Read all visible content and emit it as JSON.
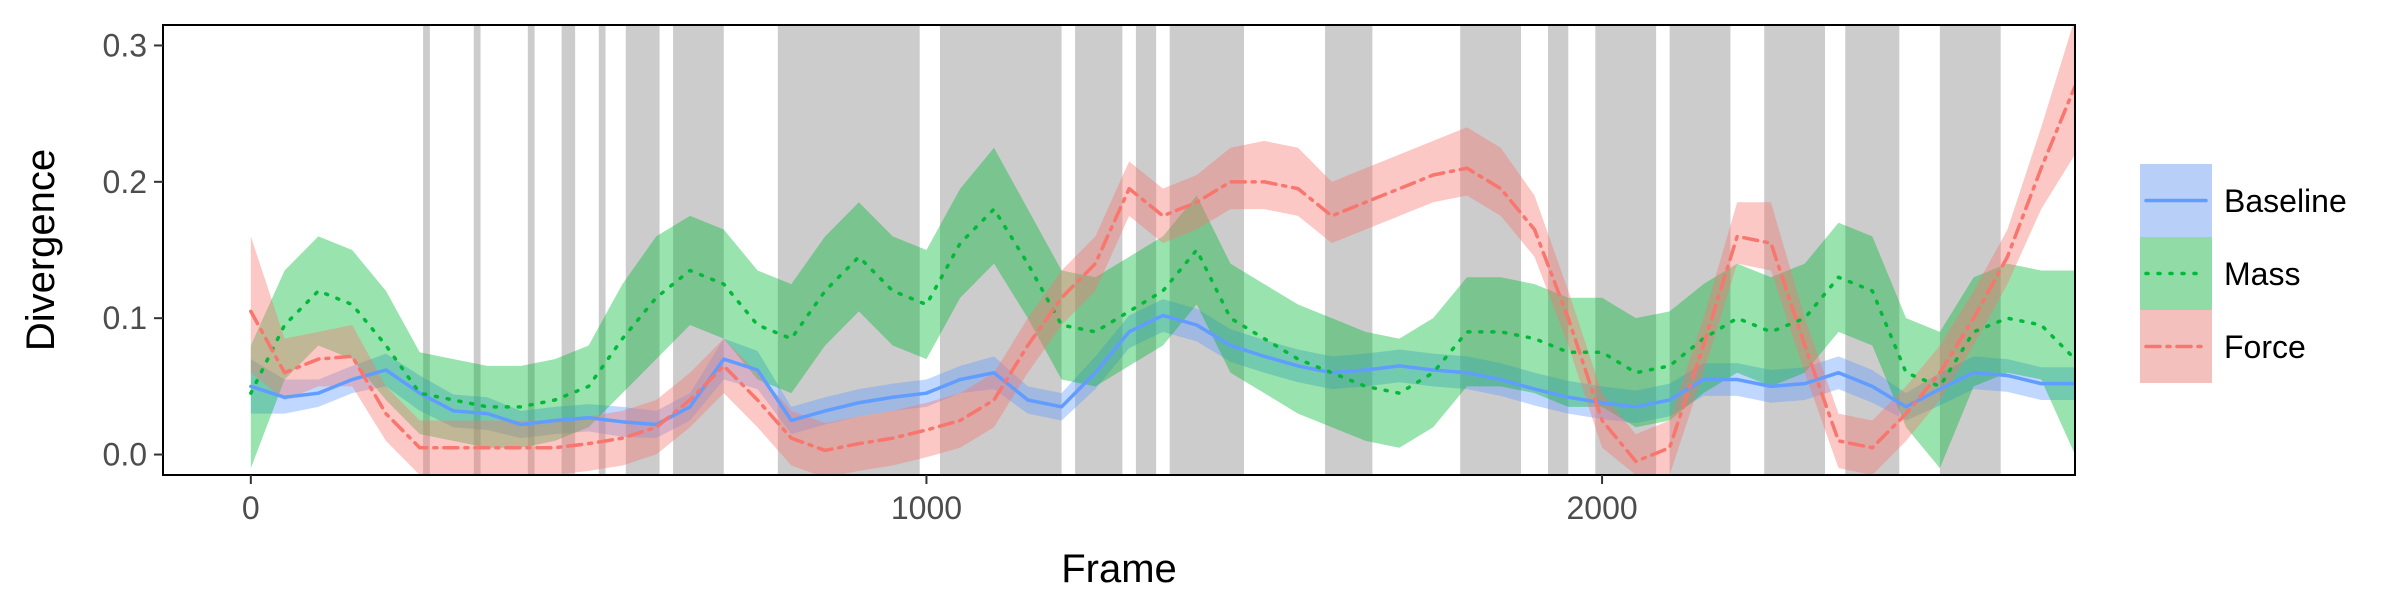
{
  "chart_data": {
    "type": "line",
    "title": "",
    "xlabel": "Frame",
    "ylabel": "Divergence",
    "xlim": [
      -130,
      2700
    ],
    "ylim": [
      -0.015,
      0.315
    ],
    "xticks": [
      0,
      1000,
      2000
    ],
    "xtick_labels": [
      "0",
      "1000",
      "2000"
    ],
    "yticks": [
      0.0,
      0.1,
      0.2,
      0.3
    ],
    "ytick_labels": [
      "0.0",
      "0.1",
      "0.2",
      "0.3"
    ],
    "grid": false,
    "legend_position": "right",
    "shaded_intervals": [
      [
        255,
        265
      ],
      [
        330,
        340
      ],
      [
        410,
        420
      ],
      [
        460,
        480
      ],
      [
        515,
        525
      ],
      [
        555,
        605
      ],
      [
        625,
        700
      ],
      [
        780,
        990
      ],
      [
        1020,
        1200
      ],
      [
        1220,
        1290
      ],
      [
        1310,
        1340
      ],
      [
        1360,
        1470
      ],
      [
        1590,
        1660
      ],
      [
        1790,
        1880
      ],
      [
        1920,
        1950
      ],
      [
        1990,
        2080
      ],
      [
        2100,
        2190
      ],
      [
        2240,
        2330
      ],
      [
        2360,
        2440
      ],
      [
        2500,
        2590
      ]
    ],
    "series": [
      {
        "name": "Baseline",
        "color": "#619CFF",
        "linestyle": "solid",
        "x": [
          0,
          50,
          100,
          150,
          200,
          250,
          300,
          350,
          400,
          450,
          500,
          550,
          600,
          650,
          700,
          750,
          800,
          850,
          900,
          950,
          1000,
          1050,
          1100,
          1150,
          1200,
          1250,
          1300,
          1350,
          1400,
          1450,
          1500,
          1550,
          1600,
          1650,
          1700,
          1750,
          1800,
          1850,
          1900,
          1950,
          2000,
          2050,
          2100,
          2150,
          2200,
          2250,
          2300,
          2350,
          2400,
          2450,
          2500,
          2550,
          2600,
          2650,
          2700
        ],
        "y": [
          0.05,
          0.042,
          0.045,
          0.055,
          0.062,
          0.045,
          0.032,
          0.03,
          0.022,
          0.025,
          0.027,
          0.024,
          0.022,
          0.035,
          0.07,
          0.062,
          0.025,
          0.032,
          0.038,
          0.042,
          0.045,
          0.055,
          0.06,
          0.04,
          0.035,
          0.06,
          0.09,
          0.102,
          0.095,
          0.08,
          0.072,
          0.065,
          0.06,
          0.062,
          0.065,
          0.062,
          0.06,
          0.055,
          0.048,
          0.042,
          0.038,
          0.035,
          0.04,
          0.055,
          0.055,
          0.05,
          0.052,
          0.06,
          0.05,
          0.035,
          0.048,
          0.06,
          0.058,
          0.052,
          0.052
        ],
        "lower": [
          0.03,
          0.03,
          0.035,
          0.045,
          0.05,
          0.032,
          0.02,
          0.018,
          0.012,
          0.015,
          0.017,
          0.013,
          0.012,
          0.025,
          0.055,
          0.048,
          0.015,
          0.022,
          0.028,
          0.032,
          0.035,
          0.045,
          0.048,
          0.03,
          0.025,
          0.048,
          0.078,
          0.09,
          0.083,
          0.068,
          0.06,
          0.053,
          0.048,
          0.05,
          0.053,
          0.05,
          0.048,
          0.043,
          0.036,
          0.03,
          0.026,
          0.023,
          0.028,
          0.043,
          0.043,
          0.038,
          0.04,
          0.048,
          0.038,
          0.025,
          0.036,
          0.048,
          0.046,
          0.04,
          0.04
        ],
        "upper": [
          0.07,
          0.055,
          0.055,
          0.065,
          0.074,
          0.058,
          0.044,
          0.042,
          0.032,
          0.035,
          0.037,
          0.035,
          0.032,
          0.045,
          0.085,
          0.076,
          0.035,
          0.042,
          0.048,
          0.052,
          0.055,
          0.065,
          0.072,
          0.05,
          0.045,
          0.072,
          0.102,
          0.114,
          0.107,
          0.092,
          0.084,
          0.077,
          0.072,
          0.074,
          0.077,
          0.074,
          0.072,
          0.067,
          0.06,
          0.054,
          0.05,
          0.047,
          0.052,
          0.067,
          0.067,
          0.062,
          0.064,
          0.072,
          0.062,
          0.045,
          0.06,
          0.072,
          0.07,
          0.064,
          0.064
        ]
      },
      {
        "name": "Mass",
        "color": "#00BA38",
        "linestyle": "dotted",
        "x": [
          0,
          50,
          100,
          150,
          200,
          250,
          300,
          350,
          400,
          450,
          500,
          550,
          600,
          650,
          700,
          750,
          800,
          850,
          900,
          950,
          1000,
          1050,
          1100,
          1150,
          1200,
          1250,
          1300,
          1350,
          1400,
          1450,
          1500,
          1550,
          1600,
          1650,
          1700,
          1750,
          1800,
          1850,
          1900,
          1950,
          2000,
          2050,
          2100,
          2150,
          2200,
          2250,
          2300,
          2350,
          2400,
          2450,
          2500,
          2550,
          2600,
          2650,
          2700
        ],
        "y": [
          0.045,
          0.095,
          0.12,
          0.11,
          0.08,
          0.045,
          0.04,
          0.035,
          0.035,
          0.04,
          0.05,
          0.085,
          0.115,
          0.135,
          0.125,
          0.095,
          0.085,
          0.12,
          0.145,
          0.12,
          0.11,
          0.155,
          0.18,
          0.14,
          0.095,
          0.09,
          0.105,
          0.12,
          0.15,
          0.1,
          0.085,
          0.07,
          0.06,
          0.05,
          0.045,
          0.06,
          0.09,
          0.09,
          0.085,
          0.075,
          0.075,
          0.06,
          0.065,
          0.085,
          0.1,
          0.09,
          0.1,
          0.13,
          0.12,
          0.06,
          0.05,
          0.09,
          0.1,
          0.095,
          0.07
        ],
        "lower": [
          -0.01,
          0.055,
          0.08,
          0.07,
          0.04,
          0.015,
          0.01,
          0.005,
          0.005,
          0.01,
          0.02,
          0.045,
          0.07,
          0.095,
          0.085,
          0.055,
          0.045,
          0.08,
          0.105,
          0.08,
          0.07,
          0.115,
          0.14,
          0.1,
          0.055,
          0.05,
          0.065,
          0.08,
          0.11,
          0.06,
          0.045,
          0.03,
          0.02,
          0.01,
          0.005,
          0.02,
          0.05,
          0.05,
          0.045,
          0.035,
          0.035,
          0.02,
          0.025,
          0.045,
          0.06,
          0.05,
          0.06,
          0.09,
          0.08,
          0.02,
          -0.01,
          0.05,
          0.06,
          0.055,
          0.0
        ],
        "upper": [
          0.08,
          0.135,
          0.16,
          0.15,
          0.12,
          0.075,
          0.07,
          0.065,
          0.065,
          0.07,
          0.08,
          0.125,
          0.16,
          0.175,
          0.165,
          0.135,
          0.125,
          0.16,
          0.185,
          0.16,
          0.15,
          0.195,
          0.225,
          0.18,
          0.135,
          0.13,
          0.145,
          0.16,
          0.19,
          0.14,
          0.125,
          0.11,
          0.1,
          0.09,
          0.085,
          0.1,
          0.13,
          0.13,
          0.125,
          0.115,
          0.115,
          0.1,
          0.105,
          0.125,
          0.14,
          0.13,
          0.14,
          0.17,
          0.16,
          0.1,
          0.09,
          0.13,
          0.14,
          0.135,
          0.135
        ]
      },
      {
        "name": "Force",
        "color": "#F8766D",
        "linestyle": "dashdot",
        "x": [
          0,
          50,
          100,
          150,
          200,
          250,
          300,
          350,
          400,
          450,
          500,
          550,
          600,
          650,
          700,
          750,
          800,
          850,
          900,
          950,
          1000,
          1050,
          1100,
          1150,
          1200,
          1250,
          1300,
          1350,
          1400,
          1450,
          1500,
          1550,
          1600,
          1650,
          1700,
          1750,
          1800,
          1850,
          1900,
          1950,
          2000,
          2050,
          2100,
          2150,
          2200,
          2250,
          2300,
          2350,
          2400,
          2450,
          2500,
          2550,
          2600,
          2650,
          2700
        ],
        "y": [
          0.105,
          0.06,
          0.07,
          0.072,
          0.03,
          0.005,
          0.005,
          0.005,
          0.005,
          0.005,
          0.008,
          0.012,
          0.02,
          0.04,
          0.065,
          0.04,
          0.012,
          0.003,
          0.008,
          0.012,
          0.018,
          0.025,
          0.04,
          0.08,
          0.115,
          0.14,
          0.195,
          0.175,
          0.185,
          0.2,
          0.2,
          0.195,
          0.175,
          0.185,
          0.195,
          0.205,
          0.21,
          0.195,
          0.165,
          0.1,
          0.025,
          -0.005,
          0.005,
          0.08,
          0.16,
          0.155,
          0.08,
          0.01,
          0.005,
          0.03,
          0.06,
          0.1,
          0.145,
          0.21,
          0.27
        ],
        "lower": [
          0.06,
          0.04,
          0.05,
          0.05,
          0.01,
          -0.015,
          -0.015,
          -0.015,
          -0.015,
          -0.015,
          -0.012,
          -0.008,
          0.0,
          0.02,
          0.045,
          0.02,
          -0.008,
          -0.017,
          -0.012,
          -0.008,
          -0.002,
          0.005,
          0.02,
          0.06,
          0.095,
          0.12,
          0.175,
          0.155,
          0.165,
          0.18,
          0.18,
          0.175,
          0.155,
          0.165,
          0.175,
          0.185,
          0.19,
          0.175,
          0.145,
          0.08,
          0.005,
          -0.015,
          -0.015,
          0.06,
          0.14,
          0.135,
          0.06,
          -0.01,
          -0.015,
          0.01,
          0.04,
          0.08,
          0.125,
          0.18,
          0.22
        ],
        "upper": [
          0.16,
          0.085,
          0.09,
          0.095,
          0.05,
          0.025,
          0.025,
          0.025,
          0.025,
          0.025,
          0.028,
          0.032,
          0.04,
          0.06,
          0.085,
          0.06,
          0.032,
          0.023,
          0.028,
          0.032,
          0.038,
          0.045,
          0.06,
          0.1,
          0.135,
          0.16,
          0.215,
          0.195,
          0.205,
          0.225,
          0.23,
          0.225,
          0.2,
          0.21,
          0.22,
          0.23,
          0.24,
          0.225,
          0.19,
          0.12,
          0.045,
          0.015,
          0.025,
          0.1,
          0.185,
          0.185,
          0.1,
          0.03,
          0.025,
          0.05,
          0.08,
          0.12,
          0.165,
          0.24,
          0.32
        ]
      }
    ]
  },
  "colors": {
    "panel_background": "#ffffff",
    "shaded_interval": "#cccccc",
    "axis_text": "#4d4d4d"
  }
}
